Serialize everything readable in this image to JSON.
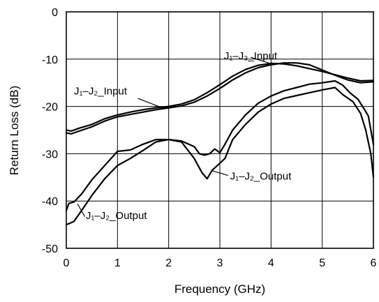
{
  "chart_data": {
    "type": "line",
    "title": "",
    "xlabel": "Frequency (GHz)",
    "ylabel": "Return Loss (dB)",
    "xlim": [
      0,
      6
    ],
    "ylim": [
      -50,
      0
    ],
    "x_ticks": [
      0,
      1,
      2,
      3,
      4,
      5,
      6
    ],
    "y_ticks": [
      0,
      -10,
      -20,
      -30,
      -40,
      -50
    ],
    "x_tick_labels": [
      "0",
      "1",
      "2",
      "3",
      "4",
      "5",
      "6"
    ],
    "y_tick_labels": [
      "0",
      "-10",
      "-20",
      "-30",
      "-40",
      "-50"
    ],
    "grid": true,
    "legend": "none",
    "series": [
      {
        "x": [
          0,
          0.1,
          0.25,
          0.5,
          0.75,
          1,
          1.25,
          1.5,
          1.75,
          2,
          2.25,
          2.5,
          2.75,
          3,
          3.25,
          3.5,
          3.75,
          4,
          4.25,
          4.5,
          4.75,
          5,
          5.25,
          5.5,
          5.75,
          6
        ],
        "y": [
          -25,
          -25.2,
          -24.6,
          -23.8,
          -22.6,
          -21.8,
          -21.2,
          -20.7,
          -20.3,
          -20.0,
          -19.5,
          -18.6,
          -17.1,
          -15.4,
          -13.6,
          -12.2,
          -11.3,
          -10.9,
          -11.0,
          -11.4,
          -12.0,
          -12.6,
          -13.3,
          -14.0,
          -14.6,
          -14.5
        ]
      },
      {
        "x": [
          0,
          0.1,
          0.25,
          0.5,
          0.75,
          1,
          1.25,
          1.5,
          1.75,
          2,
          2.25,
          2.5,
          2.75,
          3,
          3.25,
          3.5,
          3.75,
          4,
          4.25,
          4.5,
          4.75,
          5,
          5.25,
          5.5,
          5.75,
          6
        ],
        "y": [
          -25.6,
          -25.8,
          -25.2,
          -24.3,
          -23.1,
          -22.2,
          -21.7,
          -21.2,
          -20.7,
          -20.3,
          -19.9,
          -19.1,
          -17.8,
          -16.2,
          -14.4,
          -12.9,
          -11.8,
          -11.2,
          -10.8,
          -10.8,
          -11.2,
          -12.3,
          -13.4,
          -14.4,
          -15.0,
          -14.8
        ]
      },
      {
        "x": [
          0,
          0.05,
          0.15,
          0.3,
          0.5,
          0.75,
          1,
          1.25,
          1.5,
          1.75,
          2,
          2.25,
          2.5,
          2.6,
          2.7,
          2.8,
          2.9,
          3.0,
          3.1,
          3.25,
          3.5,
          3.75,
          4,
          4.25,
          4.5,
          4.75,
          5,
          5.25,
          5.4,
          5.55,
          5.7,
          5.8,
          5.9,
          6
        ],
        "y": [
          -42,
          -40.5,
          -40.2,
          -38.5,
          -35.5,
          -32.5,
          -29.5,
          -29.2,
          -28.0,
          -27.0,
          -27.0,
          -27.3,
          -28.5,
          -30.0,
          -30.3,
          -30.0,
          -29.0,
          -29.8,
          -28.0,
          -25.0,
          -21.8,
          -19.3,
          -17.8,
          -16.7,
          -16.0,
          -15.3,
          -15.0,
          -14.6,
          -15.5,
          -17.2,
          -18.5,
          -20.2,
          -22.0,
          -28.0
        ]
      },
      {
        "x": [
          0,
          0.05,
          0.15,
          0.3,
          0.5,
          0.75,
          1,
          1.25,
          1.5,
          1.75,
          2,
          2.25,
          2.5,
          2.65,
          2.75,
          2.85,
          3.0,
          3.1,
          3.25,
          3.5,
          3.75,
          4,
          4.25,
          4.5,
          4.75,
          5,
          5.25,
          5.4,
          5.6,
          5.75,
          5.85,
          5.95,
          6
        ],
        "y": [
          -45,
          -44.8,
          -44.3,
          -42.0,
          -38.8,
          -35.3,
          -32.5,
          -31.0,
          -29.3,
          -27.5,
          -27.0,
          -27.5,
          -31.0,
          -34.0,
          -35.3,
          -33.5,
          -32.0,
          -31.0,
          -27.0,
          -23.8,
          -21.2,
          -19.5,
          -18.3,
          -17.7,
          -17.1,
          -16.5,
          -16.0,
          -17.5,
          -19.0,
          -21.5,
          -25.0,
          -30.0,
          -35.0
        ]
      }
    ],
    "annotations": [
      {
        "text": "J₁–J₃_Input",
        "x": 3.08,
        "y": -10.0
      },
      {
        "text": "J₁–J₂_Input",
        "x": 0.15,
        "y": -17.5
      },
      {
        "text": "J₁–J₂_Output",
        "x": 3.2,
        "y": -35.5
      },
      {
        "text": "J₁–J₂_Output",
        "x": 0.38,
        "y": -43.8
      }
    ]
  }
}
